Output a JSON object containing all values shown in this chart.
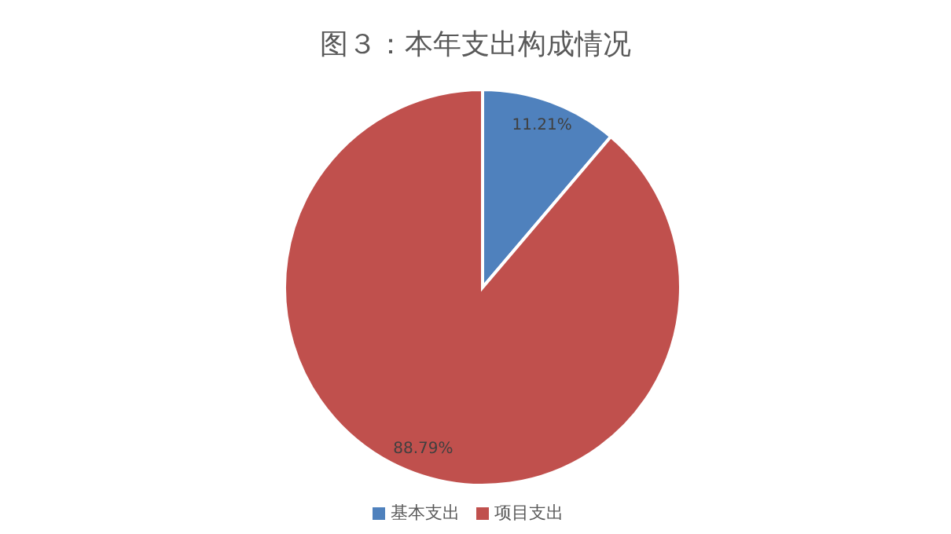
{
  "chart_data": {
    "type": "pie",
    "title": "图３：本年支出构成情况",
    "categories": [
      "基本支出",
      "项目支出"
    ],
    "values": [
      11.21,
      88.79
    ],
    "colors": [
      "#4f81bd",
      "#c0504d"
    ],
    "value_labels": [
      "11.21%",
      "88.79%"
    ],
    "legend": "bottom"
  }
}
